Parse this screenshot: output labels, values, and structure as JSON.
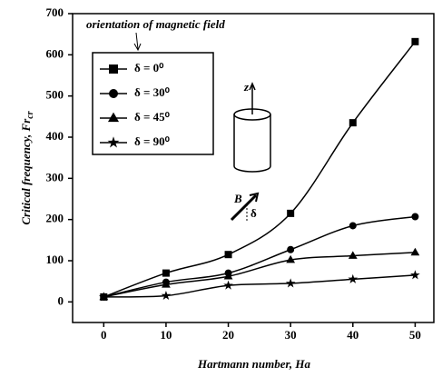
{
  "chart_data": {
    "type": "line",
    "xlabel": "Hartmann number, Ha",
    "ylabel": "Critical frequency, Fr",
    "ylabel_subscript": "cr",
    "annotation": "orientation of magnetic field",
    "diagram_labels": [
      "z",
      "B",
      "δ"
    ],
    "x": [
      0,
      10,
      20,
      30,
      40,
      50
    ],
    "series": [
      {
        "name": "δ = 0⁰",
        "color": "#000000",
        "marker": "square",
        "values": [
          12,
          70,
          115,
          215,
          435,
          632
        ]
      },
      {
        "name": "δ = 30⁰",
        "color": "#000000",
        "marker": "circle",
        "values": [
          12,
          48,
          70,
          127,
          185,
          207
        ]
      },
      {
        "name": "δ = 45⁰",
        "color": "#000000",
        "marker": "triangle",
        "values": [
          12,
          42,
          62,
          102,
          112,
          120
        ]
      },
      {
        "name": "δ = 90⁰",
        "color": "#000000",
        "marker": "star",
        "values": [
          12,
          15,
          40,
          45,
          55,
          65
        ]
      }
    ],
    "xlim": [
      -5,
      53
    ],
    "ylim": [
      -50,
      700
    ],
    "xticks": [
      0,
      10,
      20,
      30,
      40,
      50
    ],
    "yticks": [
      0,
      100,
      200,
      300,
      400,
      500,
      600,
      700
    ],
    "grid": false
  }
}
